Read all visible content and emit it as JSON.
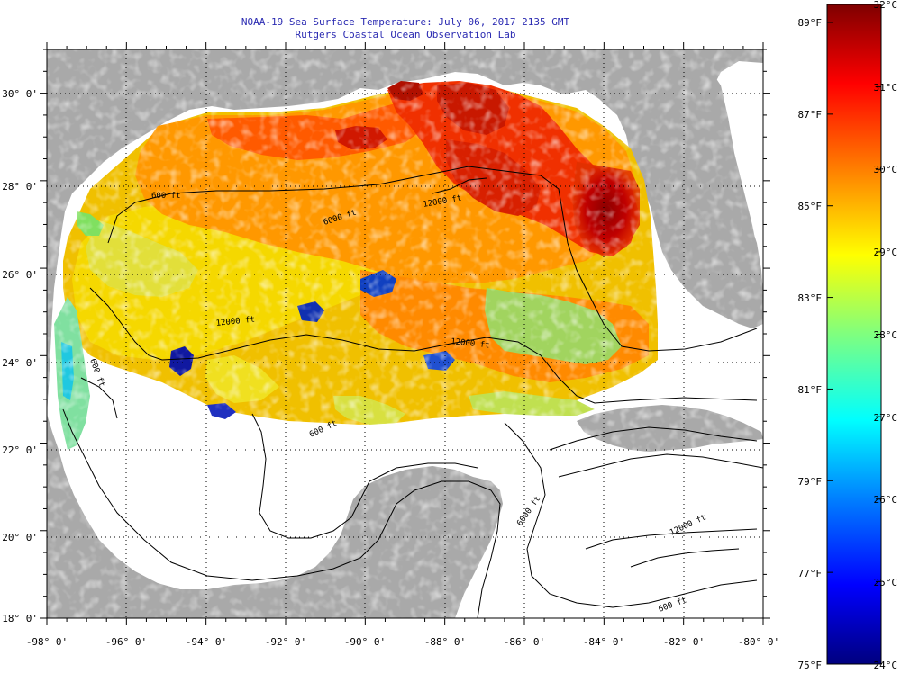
{
  "header": {
    "title": "NOAA-19 Sea Surface Temperature:  July 06, 2017 2135 GMT",
    "subtitle": "Rutgers Coastal Ocean Observation Lab"
  },
  "map": {
    "lon_range": [
      -98,
      -80
    ],
    "lat_range": [
      18,
      31
    ],
    "lon_labels": [
      "-98° 0'",
      "-96° 0'",
      "-94° 0'",
      "-92° 0'",
      "-90° 0'",
      "-88° 0'",
      "-86° 0'",
      "-84° 0'",
      "-82° 0'",
      "-80° 0'"
    ],
    "lat_labels": [
      "30° 0'",
      "28° 0'",
      "26° 0'",
      "24° 0'",
      "22° 0'",
      "20° 0'",
      "18° 0'"
    ],
    "contour_labels": [
      "600 ft",
      "6000 ft",
      "12000 ft",
      "12000 ft",
      "6000 ft",
      "600 ft",
      "600 ft",
      "12000 ft",
      "12000 ft",
      "600 ft"
    ],
    "colors": {
      "land": "#a9a9a9",
      "ocean_nodata": "#ffffff",
      "contour": "#000000"
    }
  },
  "colorbar": {
    "fahrenheit_labels": [
      "89°F",
      "87°F",
      "85°F",
      "83°F",
      "81°F",
      "79°F",
      "77°F",
      "75°F"
    ],
    "celsius_labels": [
      "32°C",
      "31°C",
      "30°C",
      "29°C",
      "28°C",
      "27°C",
      "26°C",
      "25°C",
      "24°C"
    ],
    "colors": [
      "#00007f",
      "#0000ff",
      "#007fff",
      "#00ffff",
      "#7fff7f",
      "#ffff00",
      "#ff7f00",
      "#ff0000",
      "#7f0000"
    ]
  }
}
